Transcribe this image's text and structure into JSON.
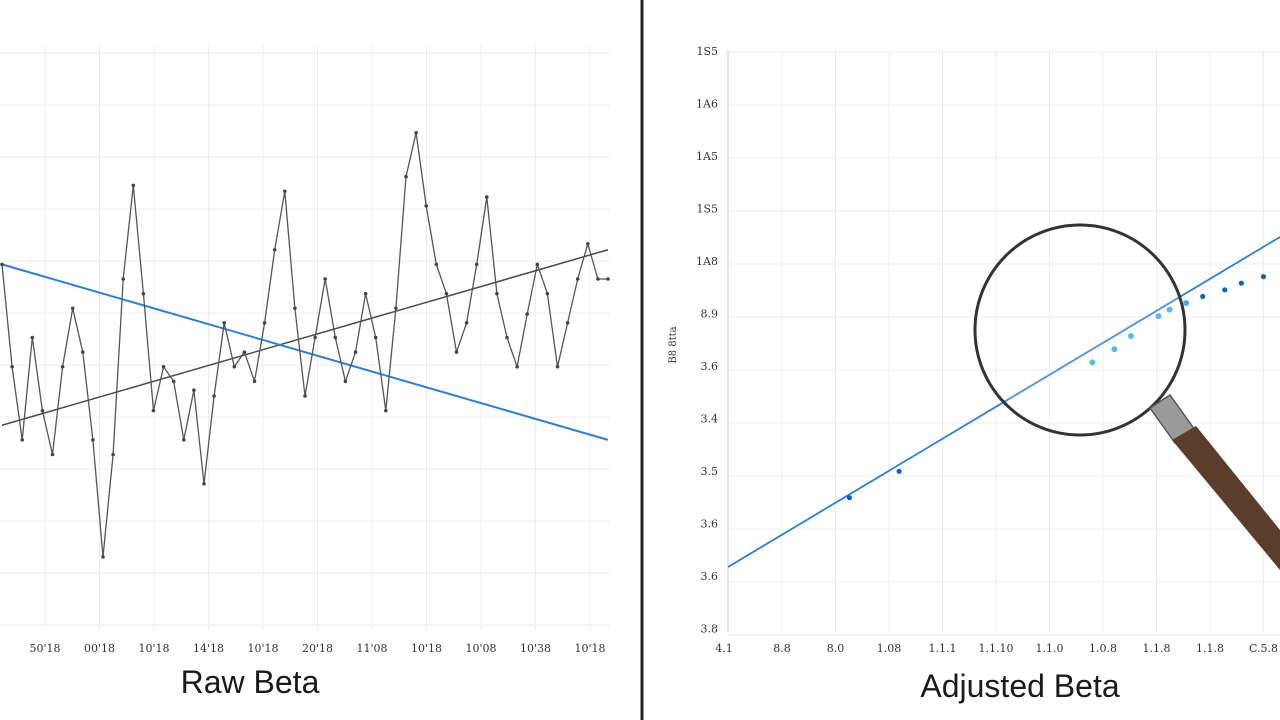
{
  "chart_data": [
    {
      "type": "line",
      "title": "Raw Beta",
      "x_tick_labels": [
        "50'18",
        "00'18",
        "10'18",
        "14'18",
        "10'18",
        "20'18",
        "11'08",
        "10'18",
        "10'08",
        "10'38",
        "10'18"
      ],
      "grid": true,
      "colors": {
        "series": "#555555",
        "trend_up": "#4a4a4a",
        "trend_down": "#2f7fd0"
      },
      "series": [
        {
          "x": [
            0,
            1,
            2,
            3,
            4,
            5,
            6,
            7,
            8,
            9,
            10,
            11,
            12,
            13,
            14,
            15,
            16,
            17,
            18,
            19,
            20,
            21,
            22,
            23,
            24,
            25,
            26,
            27,
            28,
            29,
            30,
            31,
            32,
            33,
            34,
            35,
            36,
            37,
            38,
            39,
            40,
            41,
            42,
            43,
            44,
            45,
            46,
            47,
            48,
            49,
            50,
            51,
            52,
            53,
            54,
            55,
            56,
            57,
            58,
            59,
            60
          ],
          "values": [
            0.55,
            0.2,
            -0.05,
            0.3,
            0.05,
            -0.1,
            0.2,
            0.4,
            0.25,
            -0.05,
            -0.45,
            -0.1,
            0.5,
            0.82,
            0.45,
            0.05,
            0.2,
            0.15,
            -0.05,
            0.12,
            -0.2,
            0.1,
            0.35,
            0.2,
            0.25,
            0.15,
            0.35,
            0.6,
            0.8,
            0.4,
            0.1,
            0.3,
            0.5,
            0.3,
            0.15,
            0.25,
            0.45,
            0.3,
            0.05,
            0.4,
            0.85,
            1.0,
            0.75,
            0.55,
            0.45,
            0.25,
            0.35,
            0.55,
            0.78,
            0.45,
            0.3,
            0.2,
            0.38,
            0.55,
            0.45,
            0.2,
            0.35,
            0.5,
            0.62,
            0.5,
            0.5
          ]
        }
      ],
      "trend_lines": [
        {
          "from": [
            0,
            0.0
          ],
          "to": [
            60,
            0.6
          ]
        },
        {
          "from": [
            0,
            0.55
          ],
          "to": [
            60,
            -0.05
          ]
        }
      ]
    },
    {
      "type": "scatter",
      "title": "Adjusted Beta",
      "ylabel": "B8 8tta",
      "y_tick_labels": [
        "1S5",
        "1A6",
        "1A5",
        "1S5",
        "1A8",
        "8.9",
        "3.6",
        "3.4",
        "3.5",
        "3.6",
        "3.6",
        "3.8"
      ],
      "x_tick_labels": [
        "4.1",
        "8.8",
        "8.0",
        "1.08",
        "1.1.1",
        "1.1.10",
        "1.1.0",
        "1.0.8",
        "1.1.8",
        "1.1.8",
        "C.5.8",
        "1.1.8"
      ],
      "grid": true,
      "colors": {
        "fit_line": "#2f7fd0",
        "points": "#1a5fb4",
        "highlight": "#40b0e0",
        "magnifier_handle": "#5a3d2b"
      },
      "fit_line": {
        "from": [
          0,
          0
        ],
        "to": [
          1,
          1
        ]
      },
      "series": [
        {
          "x": [
            0.22,
            0.31,
            0.66,
            0.7,
            0.73,
            0.78,
            0.8,
            0.83,
            0.86,
            0.9,
            0.93,
            0.97
          ],
          "values": [
            0.21,
            0.29,
            0.62,
            0.66,
            0.7,
            0.76,
            0.78,
            0.8,
            0.82,
            0.84,
            0.86,
            0.88
          ]
        }
      ]
    }
  ]
}
